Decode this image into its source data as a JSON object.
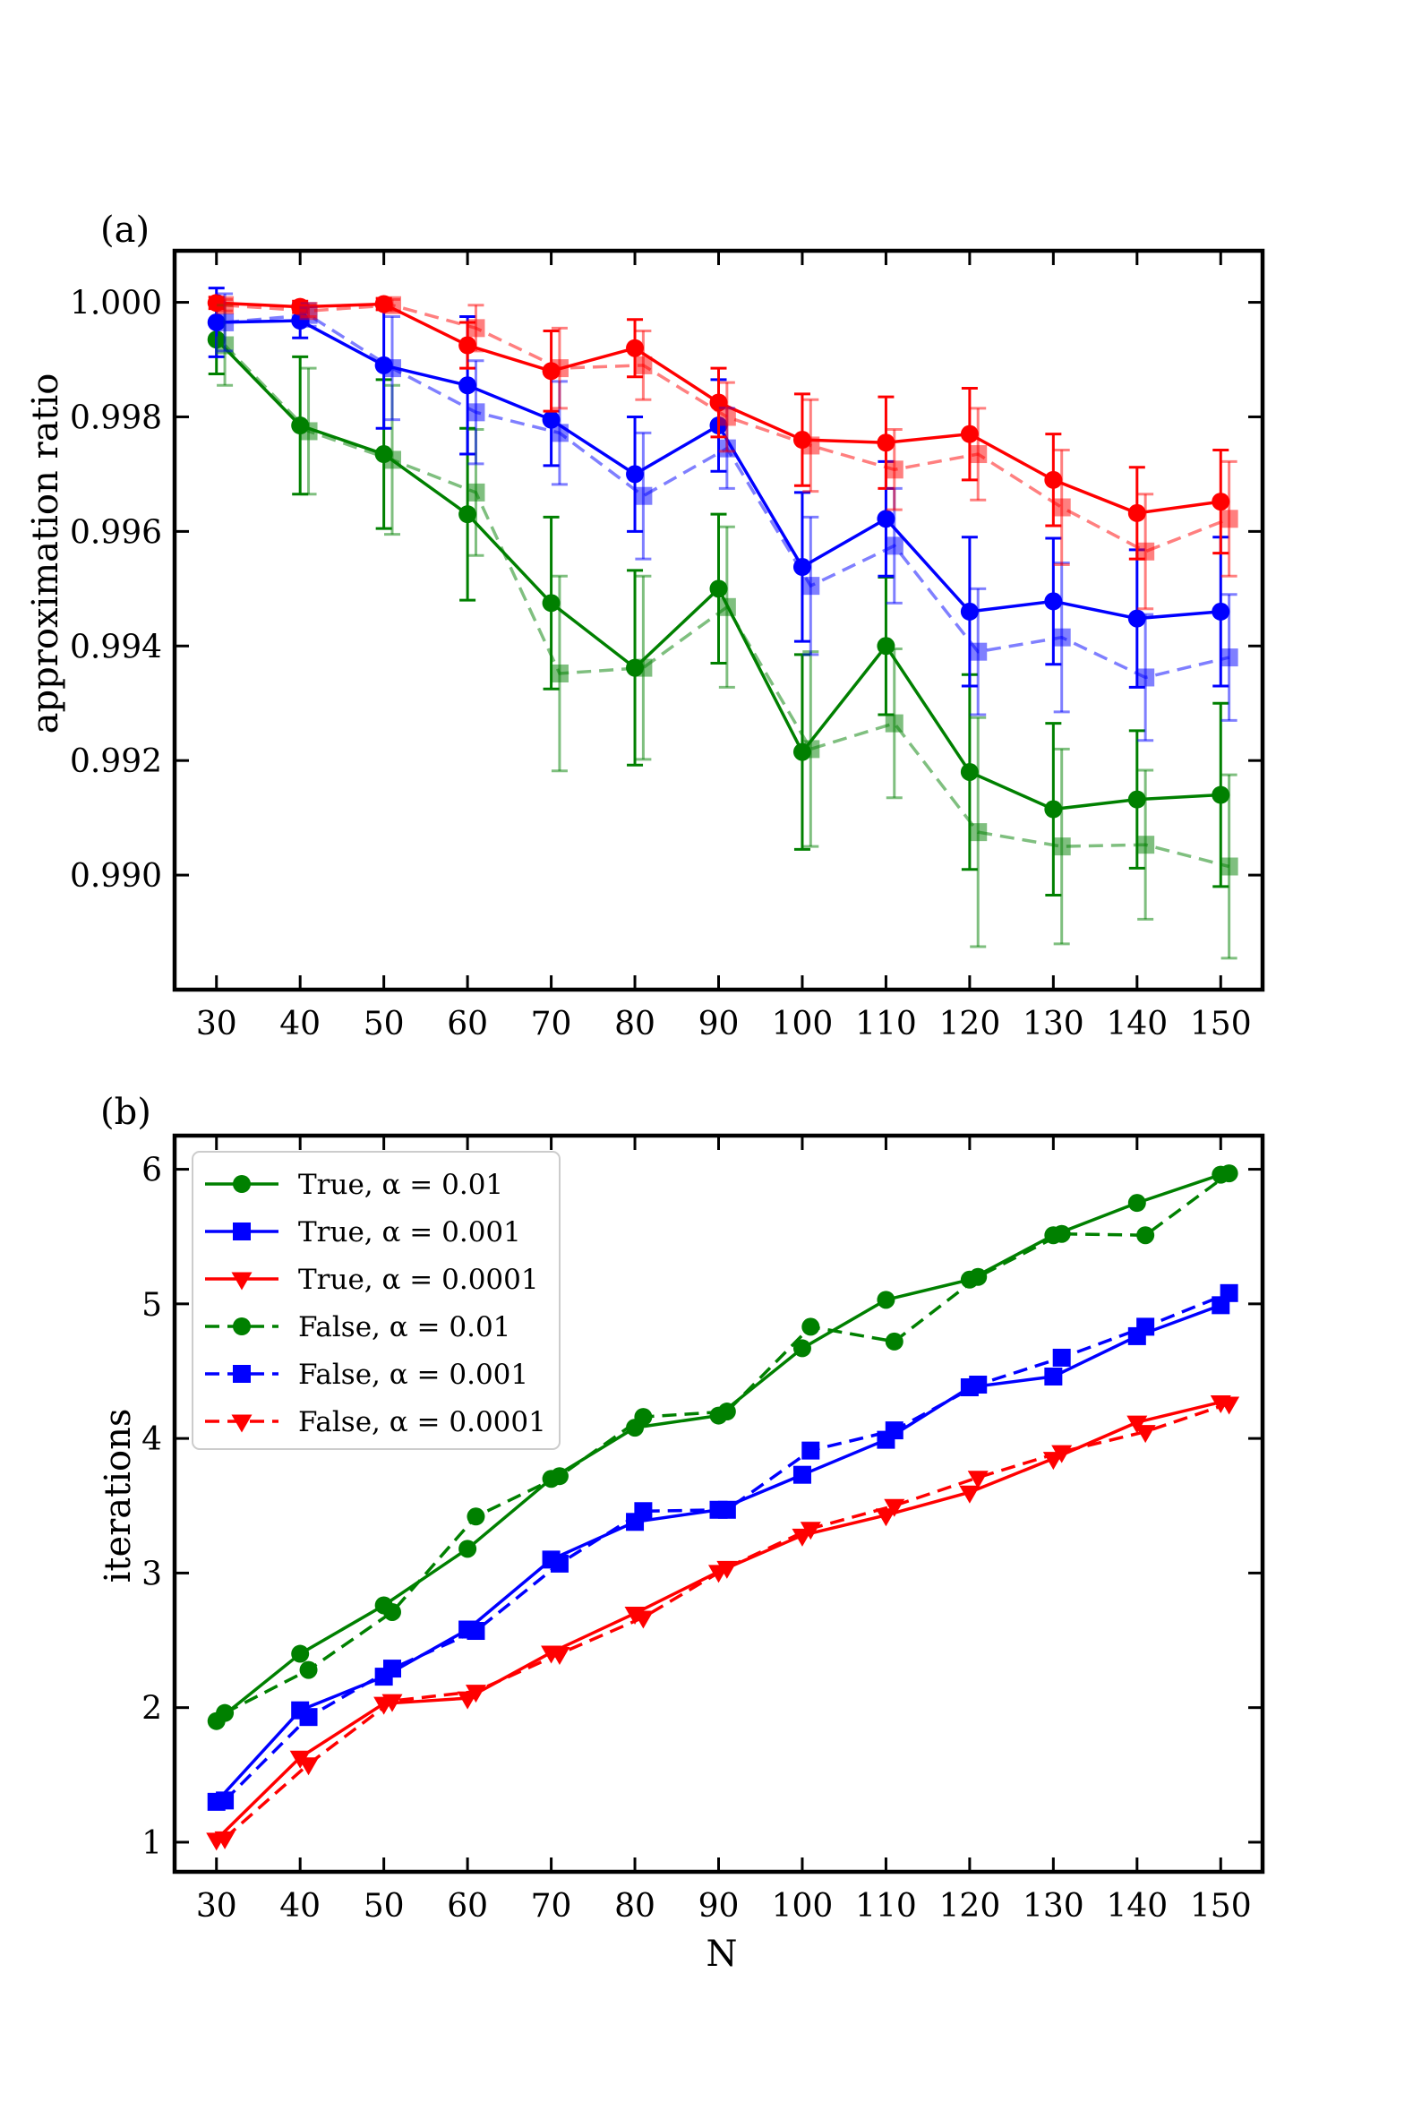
{
  "chart_data": [
    {
      "type": "line",
      "panel_label": "(a)",
      "xlabel": "",
      "ylabel": "approximation ratio",
      "xlim": [
        25,
        155
      ],
      "ylim": [
        0.988,
        1.0009
      ],
      "x_ticks": [
        30,
        40,
        50,
        60,
        70,
        80,
        90,
        100,
        110,
        120,
        130,
        140,
        150
      ],
      "x_tick_labels": [
        "30",
        "40",
        "50",
        "60",
        "70",
        "80",
        "90",
        "100",
        "110",
        "120",
        "130",
        "140",
        "150"
      ],
      "y_ticks": [
        0.99,
        0.992,
        0.994,
        0.996,
        0.998,
        1.0
      ],
      "y_tick_labels": [
        "0.990",
        "0.992",
        "0.994",
        "0.996",
        "0.998",
        "1.000"
      ],
      "legend": "none",
      "series": [
        {
          "name": "True, α = 0.01",
          "color": "#008000",
          "dash": "solid",
          "marker": "circle",
          "opacity": 1.0,
          "x_offset": 0,
          "values": [
            0.99935,
            0.99785,
            0.99735,
            0.9963,
            0.99475,
            0.99362,
            0.995,
            0.99215,
            0.994,
            0.9918,
            0.99115,
            0.99132,
            0.9914
          ],
          "err": [
            0.0006,
            0.0012,
            0.0013,
            0.0015,
            0.0015,
            0.0017,
            0.0013,
            0.0017,
            0.0012,
            0.0017,
            0.0015,
            0.0012,
            0.0016
          ]
        },
        {
          "name": "True, α = 0.001",
          "color": "#0000ff",
          "dash": "solid",
          "marker": "circle",
          "opacity": 1.0,
          "x_offset": 0,
          "values": [
            0.99965,
            0.99968,
            0.9989,
            0.99855,
            0.99795,
            0.997,
            0.99785,
            0.99538,
            0.99622,
            0.9946,
            0.99478,
            0.99448,
            0.9946
          ],
          "err": [
            0.0006,
            0.0003,
            0.0011,
            0.0012,
            0.0008,
            0.001,
            0.0008,
            0.0013,
            0.001,
            0.0013,
            0.0011,
            0.0012,
            0.0013
          ]
        },
        {
          "name": "True, α = 0.0001",
          "color": "#ff0000",
          "dash": "solid",
          "marker": "circle",
          "opacity": 1.0,
          "x_offset": 0,
          "values": [
            0.99999,
            0.99992,
            0.99997,
            0.99925,
            0.9988,
            0.9992,
            0.99825,
            0.9976,
            0.99755,
            0.9977,
            0.9969,
            0.99632,
            0.99652
          ],
          "err": [
            0.0001,
            0.0001,
            0.0001,
            0.0004,
            0.0007,
            0.0005,
            0.0006,
            0.0008,
            0.0008,
            0.0008,
            0.0008,
            0.0008,
            0.0009
          ]
        },
        {
          "name": "False, α = 0.01",
          "color": "#008000",
          "dash": "dashed",
          "marker": "square",
          "opacity": 0.5,
          "x_offset": 1,
          "values": [
            0.99925,
            0.99775,
            0.99725,
            0.99668,
            0.99352,
            0.99362,
            0.99468,
            0.9922,
            0.99265,
            0.99075,
            0.9905,
            0.99053,
            0.99015
          ],
          "err": [
            0.0007,
            0.0011,
            0.0013,
            0.0011,
            0.0017,
            0.0016,
            0.0014,
            0.0017,
            0.0013,
            0.002,
            0.0017,
            0.0013,
            0.0016
          ]
        },
        {
          "name": "False, α = 0.001",
          "color": "#0000ff",
          "dash": "dashed",
          "marker": "square",
          "opacity": 0.5,
          "x_offset": 1,
          "values": [
            0.99965,
            0.99978,
            0.99885,
            0.99808,
            0.99772,
            0.99662,
            0.99745,
            0.99505,
            0.99575,
            0.9939,
            0.99415,
            0.99345,
            0.9938
          ],
          "err": [
            0.0005,
            0.0002,
            0.0009,
            0.0009,
            0.0009,
            0.0011,
            0.0007,
            0.0012,
            0.001,
            0.0011,
            0.0013,
            0.0011,
            0.0011
          ]
        },
        {
          "name": "False, α = 0.0001",
          "color": "#ff0000",
          "dash": "dashed",
          "marker": "square",
          "opacity": 0.5,
          "x_offset": 1,
          "values": [
            0.99995,
            0.99985,
            0.99995,
            0.99955,
            0.99885,
            0.9989,
            0.998,
            0.9975,
            0.99708,
            0.99735,
            0.99642,
            0.99565,
            0.99622
          ],
          "err": [
            0.0001,
            0.0001,
            0.0001,
            0.0004,
            0.0007,
            0.0006,
            0.0006,
            0.0008,
            0.0007,
            0.0008,
            0.001,
            0.001,
            0.001
          ]
        }
      ]
    },
    {
      "type": "line",
      "panel_label": "(b)",
      "xlabel": "N",
      "ylabel": "iterations",
      "xlim": [
        25,
        155
      ],
      "ylim": [
        0.78,
        6.25
      ],
      "x_ticks": [
        30,
        40,
        50,
        60,
        70,
        80,
        90,
        100,
        110,
        120,
        130,
        140,
        150
      ],
      "x_tick_labels": [
        "30",
        "40",
        "50",
        "60",
        "70",
        "80",
        "90",
        "100",
        "110",
        "120",
        "130",
        "140",
        "150"
      ],
      "y_ticks": [
        1,
        2,
        3,
        4,
        5,
        6
      ],
      "y_tick_labels": [
        "1",
        "2",
        "3",
        "4",
        "5",
        "6"
      ],
      "legend": "top-left",
      "series": [
        {
          "name": "True, α = 0.01",
          "color": "#008000",
          "dash": "solid",
          "marker": "circle",
          "x_offset": 0,
          "values": [
            1.9,
            2.4,
            2.76,
            3.18,
            3.7,
            4.08,
            4.17,
            4.67,
            5.03,
            5.18,
            5.51,
            5.75,
            5.96
          ]
        },
        {
          "name": "True, α = 0.001",
          "color": "#0000ff",
          "dash": "solid",
          "marker": "square",
          "x_offset": 0,
          "values": [
            1.3,
            1.98,
            2.23,
            2.58,
            3.1,
            3.38,
            3.47,
            3.73,
            3.99,
            4.38,
            4.46,
            4.76,
            4.99
          ]
        },
        {
          "name": "True, α = 0.0001",
          "color": "#ff0000",
          "dash": "solid",
          "marker": "triangle-down",
          "x_offset": 0,
          "values": [
            1.02,
            1.63,
            2.03,
            2.07,
            2.41,
            2.7,
            3.01,
            3.28,
            3.43,
            3.6,
            3.85,
            4.12,
            4.27
          ]
        },
        {
          "name": "False, α = 0.01",
          "color": "#008000",
          "dash": "dashed",
          "marker": "circle",
          "x_offset": 1,
          "values": [
            1.96,
            2.28,
            2.71,
            3.42,
            3.72,
            4.16,
            4.2,
            4.83,
            4.72,
            5.2,
            5.52,
            5.51,
            5.97
          ]
        },
        {
          "name": "False, α = 0.001",
          "color": "#0000ff",
          "dash": "dashed",
          "marker": "square",
          "x_offset": 1,
          "values": [
            1.31,
            1.93,
            2.29,
            2.57,
            3.07,
            3.46,
            3.47,
            3.91,
            4.06,
            4.4,
            4.6,
            4.83,
            5.08
          ]
        },
        {
          "name": "False, α = 0.0001",
          "color": "#ff0000",
          "dash": "dashed",
          "marker": "triangle-down",
          "x_offset": 1,
          "values": [
            1.03,
            1.58,
            2.05,
            2.12,
            2.4,
            2.67,
            3.04,
            3.33,
            3.5,
            3.71,
            3.9,
            4.05,
            4.26
          ]
        }
      ]
    }
  ]
}
